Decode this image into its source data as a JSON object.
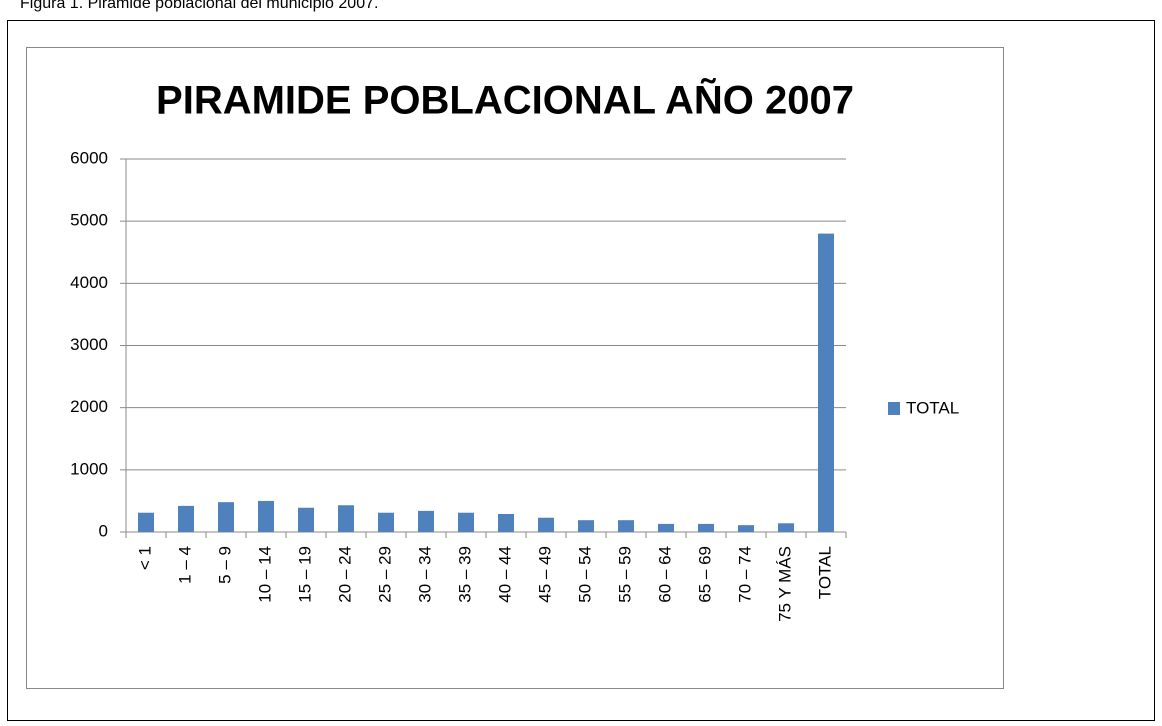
{
  "caption": "Figura 1. Pirámide poblacional del municipio 2007.",
  "chart_data": {
    "type": "bar",
    "title": "PIRAMIDE POBLACIONAL AÑO 2007",
    "categories": [
      "< 1",
      "1 – 4",
      "5 – 9",
      "10 – 14",
      "15 – 19",
      "20 – 24",
      "25 – 29",
      "30 – 34",
      "35 – 39",
      "40 – 44",
      "45 – 49",
      "50 – 54",
      "55 – 59",
      "60 – 64",
      "65 – 69",
      "70 – 74",
      "75 Y MÁS",
      "TOTAL"
    ],
    "series": [
      {
        "name": "TOTAL",
        "color": "#4f81bd",
        "values": [
          310,
          420,
          480,
          500,
          390,
          430,
          310,
          340,
          310,
          290,
          230,
          190,
          190,
          130,
          130,
          110,
          140,
          4800
        ]
      }
    ],
    "ylim": [
      0,
      6000
    ],
    "yticks": [
      0,
      1000,
      2000,
      3000,
      4000,
      5000,
      6000
    ],
    "grid": true,
    "legend": "right"
  }
}
